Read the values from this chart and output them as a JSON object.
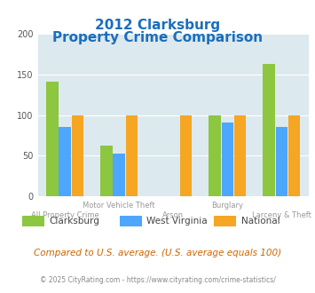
{
  "title_line1": "2012 Clarksburg",
  "title_line2": "Property Crime Comparison",
  "categories": [
    "All Property Crime",
    "Motor Vehicle Theft",
    "Arson",
    "Burglary",
    "Larceny & Theft"
  ],
  "series": {
    "Clarksburg": [
      141,
      62,
      0,
      100,
      163
    ],
    "West Virginia": [
      85,
      52,
      0,
      91,
      85
    ],
    "National": [
      100,
      100,
      100,
      100,
      100
    ]
  },
  "colors": {
    "Clarksburg": "#8dc63f",
    "West Virginia": "#4da6ff",
    "National": "#f5a623"
  },
  "ylim": [
    0,
    200
  ],
  "yticks": [
    0,
    50,
    100,
    150,
    200
  ],
  "background_color": "#dce9ef",
  "plot_bg": "#dce9ef",
  "title_color": "#1a6ebd",
  "xlabel_color": "#888888",
  "footer_text": "Compared to U.S. average. (U.S. average equals 100)",
  "copyright_text": "© 2025 CityRating.com - https://www.cityrating.com/crime-statistics/",
  "footer_color": "#cc6600",
  "copyright_color": "#888888",
  "arson_clarksburg": 0,
  "arson_wv": 0
}
